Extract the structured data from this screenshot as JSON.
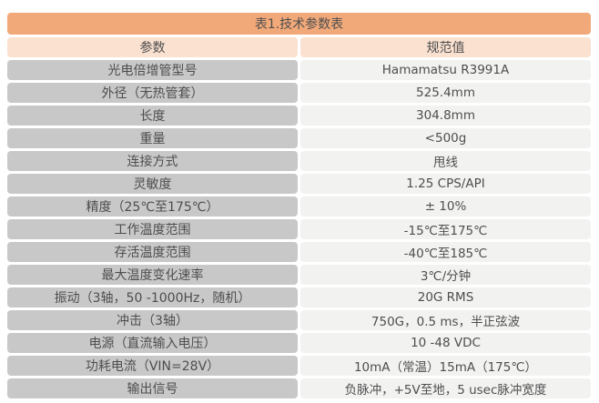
{
  "table": {
    "title": "表1.技术参数表",
    "columns": [
      "参数",
      "规范值"
    ],
    "rows": [
      {
        "param": "光电倍增管型号",
        "value": "Hamamatsu R3991A"
      },
      {
        "param": "外径（无热管套）",
        "value": "525.4mm"
      },
      {
        "param": "长度",
        "value": "304.8mm"
      },
      {
        "param": "重量",
        "value": "<500g"
      },
      {
        "param": "连接方式",
        "value": "甩线"
      },
      {
        "param": "灵敏度",
        "value": "1.25 CPS/API"
      },
      {
        "param": "精度（25℃至175℃）",
        "value": "± 10%"
      },
      {
        "param": "工作温度范围",
        "value": "-15℃至175℃"
      },
      {
        "param": "存活温度范围",
        "value": "-40℃至185℃"
      },
      {
        "param": "最大温度变化速率",
        "value": "3℃/分钟"
      },
      {
        "param": "振动（3轴，50 -1000Hz，随机）",
        "value": "20G RMS"
      },
      {
        "param": "冲击（3轴）",
        "value": "750G，0.5 ms，半正弦波"
      },
      {
        "param": "电源（直流输入电压）",
        "value": "10 -48 VDC"
      },
      {
        "param": "功耗电流（VIN=28V）",
        "value": "10mA（常温）15mA（175℃）"
      },
      {
        "param": "输出信号",
        "value": "负脉冲，+5V至地，5 usec脉冲宽度"
      }
    ]
  },
  "colors": {
    "title_bg": "#F2A97A",
    "header_bg": "#FAE1D0",
    "param_bg": "#C7C8C7",
    "value_bg": "#F2F2F1",
    "text": "#4E4E4E"
  }
}
